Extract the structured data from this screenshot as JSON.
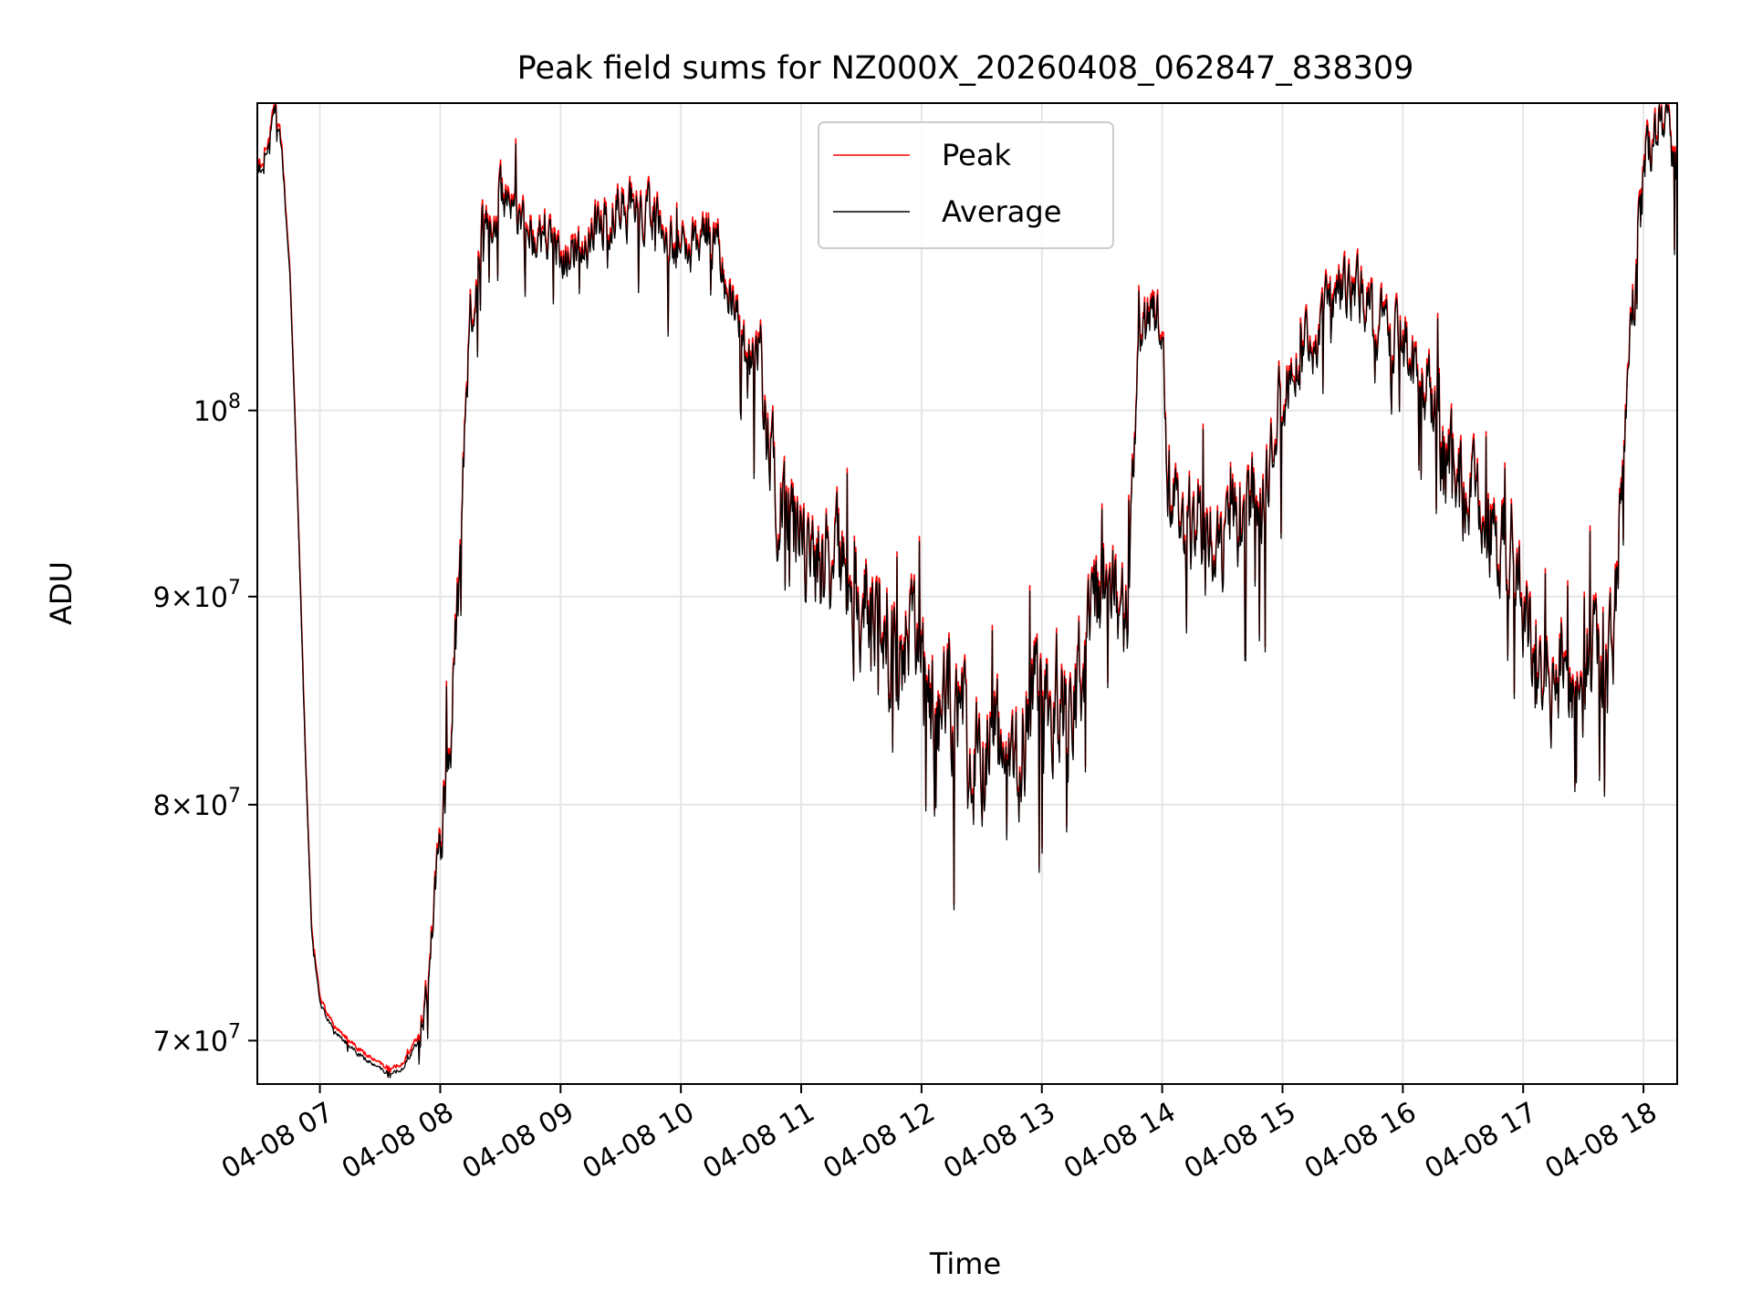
{
  "chart_data": {
    "type": "line",
    "title": "Peak field sums for NZ000X_20260408_062847_838309",
    "xlabel": "Time",
    "ylabel": "ADU",
    "yscale": "log",
    "ylim": [
      68300000,
      119000000
    ],
    "xlim_hours": [
      6.48,
      18.28
    ],
    "grid": true,
    "legend_position": "upper center",
    "x_ticks": [
      {
        "hour": 7,
        "label": "04-08 07"
      },
      {
        "hour": 8,
        "label": "04-08 08"
      },
      {
        "hour": 9,
        "label": "04-08 09"
      },
      {
        "hour": 10,
        "label": "04-08 10"
      },
      {
        "hour": 11,
        "label": "04-08 11"
      },
      {
        "hour": 12,
        "label": "04-08 12"
      },
      {
        "hour": 13,
        "label": "04-08 13"
      },
      {
        "hour": 14,
        "label": "04-08 14"
      },
      {
        "hour": 15,
        "label": "04-08 15"
      },
      {
        "hour": 16,
        "label": "04-08 16"
      },
      {
        "hour": 17,
        "label": "04-08 17"
      },
      {
        "hour": 18,
        "label": "04-08 18"
      }
    ],
    "y_ticks": [
      {
        "value": 70000000,
        "mant": "7",
        "exp": "7"
      },
      {
        "value": 80000000,
        "mant": "8",
        "exp": "7"
      },
      {
        "value": 90000000,
        "mant": "9",
        "exp": "7"
      },
      {
        "value": 100000000,
        "mant": "",
        "exp": "8"
      }
    ],
    "series": [
      {
        "name": "Peak",
        "color": "#ff0000"
      },
      {
        "name": "Average",
        "color": "#000000"
      }
    ],
    "average_anchors": [
      [
        6.48,
        114.0
      ],
      [
        6.52,
        115.0
      ],
      [
        6.56,
        115.5
      ],
      [
        6.6,
        117.5
      ],
      [
        6.63,
        118.6
      ],
      [
        6.68,
        116.0
      ],
      [
        6.75,
        108.0
      ],
      [
        6.82,
        94.0
      ],
      [
        6.88,
        82.0
      ],
      [
        6.93,
        74.5
      ],
      [
        7.0,
        71.5
      ],
      [
        7.1,
        70.5
      ],
      [
        7.2,
        70.0
      ],
      [
        7.3,
        69.6
      ],
      [
        7.4,
        69.2
      ],
      [
        7.5,
        68.9
      ],
      [
        7.6,
        68.7
      ],
      [
        7.7,
        69.0
      ],
      [
        7.8,
        69.8
      ],
      [
        7.88,
        71.5
      ],
      [
        7.95,
        76.0
      ],
      [
        8.0,
        79.5
      ],
      [
        8.05,
        82.0
      ],
      [
        8.1,
        84.5
      ],
      [
        8.15,
        90.0
      ],
      [
        8.2,
        97.0
      ],
      [
        8.25,
        105.0
      ],
      [
        8.32,
        110.0
      ],
      [
        8.4,
        111.5
      ],
      [
        8.5,
        112.5
      ],
      [
        8.6,
        111.5
      ],
      [
        8.7,
        111.0
      ],
      [
        8.8,
        110.5
      ],
      [
        8.9,
        110.5
      ],
      [
        9.0,
        109.5
      ],
      [
        9.1,
        109.5
      ],
      [
        9.2,
        110.0
      ],
      [
        9.3,
        111.0
      ],
      [
        9.4,
        111.8
      ],
      [
        9.5,
        112.5
      ],
      [
        9.6,
        112.0
      ],
      [
        9.7,
        112.0
      ],
      [
        9.8,
        111.0
      ],
      [
        9.9,
        110.0
      ],
      [
        10.0,
        109.5
      ],
      [
        10.1,
        110.0
      ],
      [
        10.2,
        111.0
      ],
      [
        10.3,
        109.5
      ],
      [
        10.4,
        107.0
      ],
      [
        10.5,
        104.5
      ],
      [
        10.6,
        103.0
      ],
      [
        10.7,
        100.0
      ],
      [
        10.8,
        96.0
      ],
      [
        10.9,
        93.5
      ],
      [
        11.0,
        93.5
      ],
      [
        11.1,
        92.0
      ],
      [
        11.2,
        91.0
      ],
      [
        11.3,
        91.5
      ],
      [
        11.4,
        91.0
      ],
      [
        11.5,
        89.0
      ],
      [
        11.6,
        89.5
      ],
      [
        11.7,
        87.5
      ],
      [
        11.8,
        86.0
      ],
      [
        11.9,
        87.0
      ],
      [
        12.0,
        86.5
      ],
      [
        12.1,
        85.0
      ],
      [
        12.2,
        84.0
      ],
      [
        12.3,
        84.5
      ],
      [
        12.4,
        82.0
      ],
      [
        12.5,
        82.5
      ],
      [
        12.6,
        83.0
      ],
      [
        12.7,
        81.5
      ],
      [
        12.8,
        82.0
      ],
      [
        12.9,
        84.5
      ],
      [
        13.0,
        84.5
      ],
      [
        13.1,
        85.5
      ],
      [
        13.2,
        84.0
      ],
      [
        13.3,
        85.5
      ],
      [
        13.4,
        88.5
      ],
      [
        13.5,
        91.0
      ],
      [
        13.6,
        89.5
      ],
      [
        13.7,
        88.5
      ],
      [
        13.75,
        95.0
      ],
      [
        13.8,
        104.0
      ],
      [
        13.9,
        105.0
      ],
      [
        14.0,
        104.0
      ],
      [
        14.05,
        96.0
      ],
      [
        14.1,
        94.0
      ],
      [
        14.2,
        93.0
      ],
      [
        14.3,
        94.0
      ],
      [
        14.4,
        93.0
      ],
      [
        14.5,
        92.5
      ],
      [
        14.6,
        93.5
      ],
      [
        14.7,
        94.0
      ],
      [
        14.8,
        95.0
      ],
      [
        14.9,
        98.5
      ],
      [
        15.0,
        101.0
      ],
      [
        15.1,
        102.0
      ],
      [
        15.2,
        103.5
      ],
      [
        15.3,
        104.5
      ],
      [
        15.4,
        106.0
      ],
      [
        15.5,
        107.0
      ],
      [
        15.6,
        107.5
      ],
      [
        15.7,
        106.0
      ],
      [
        15.8,
        105.0
      ],
      [
        15.9,
        104.5
      ],
      [
        16.0,
        104.0
      ],
      [
        16.1,
        102.0
      ],
      [
        16.2,
        100.0
      ],
      [
        16.3,
        98.0
      ],
      [
        16.4,
        97.0
      ],
      [
        16.5,
        96.0
      ],
      [
        16.6,
        94.5
      ],
      [
        16.7,
        94.0
      ],
      [
        16.8,
        93.0
      ],
      [
        16.9,
        92.0
      ],
      [
        17.0,
        90.0
      ],
      [
        17.1,
        86.5
      ],
      [
        17.2,
        85.5
      ],
      [
        17.3,
        86.5
      ],
      [
        17.4,
        87.0
      ],
      [
        17.5,
        86.0
      ],
      [
        17.6,
        86.5
      ],
      [
        17.7,
        86.5
      ],
      [
        17.75,
        89.0
      ],
      [
        17.8,
        95.0
      ],
      [
        17.85,
        100.0
      ],
      [
        17.9,
        104.5
      ],
      [
        17.95,
        109.0
      ],
      [
        18.0,
        113.5
      ],
      [
        18.05,
        116.5
      ],
      [
        18.1,
        117.5
      ],
      [
        18.15,
        117.0
      ],
      [
        18.2,
        116.0
      ],
      [
        18.28,
        114.0
      ]
    ],
    "noise_segments": [
      [
        6.48,
        6.72,
        0.6
      ],
      [
        6.72,
        7.82,
        0.12
      ],
      [
        7.82,
        8.0,
        0.9
      ],
      [
        8.0,
        8.35,
        2.2
      ],
      [
        8.35,
        10.55,
        1.8
      ],
      [
        10.55,
        13.75,
        3.2
      ],
      [
        13.75,
        14.05,
        2.2
      ],
      [
        14.05,
        15.0,
        2.8
      ],
      [
        15.0,
        15.8,
        2.0
      ],
      [
        15.8,
        16.2,
        2.2
      ],
      [
        16.2,
        17.75,
        3.2
      ],
      [
        17.75,
        18.28,
        2.5
      ]
    ],
    "sample_step_hours": 0.006,
    "noise_seed": 838309,
    "peak_offset_ratio": 1.003
  }
}
